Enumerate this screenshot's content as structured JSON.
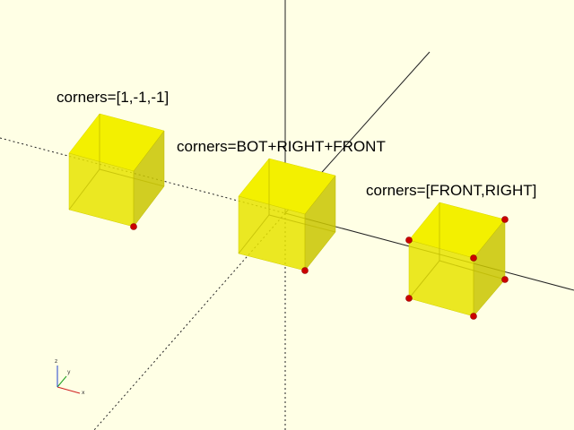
{
  "labels": {
    "cube1": "corners=[1,-1,-1]",
    "cube2": "corners=BOT+RIGHT+FRONT",
    "cube3": "corners=[FRONT,RIGHT]"
  },
  "axes_gizmo": {
    "x": "x",
    "y": "y",
    "z": "z"
  },
  "colors": {
    "background": "#ffffe5",
    "cube": "#f0ed00",
    "corner_marker": "#cc0000",
    "axis": "#222222"
  }
}
